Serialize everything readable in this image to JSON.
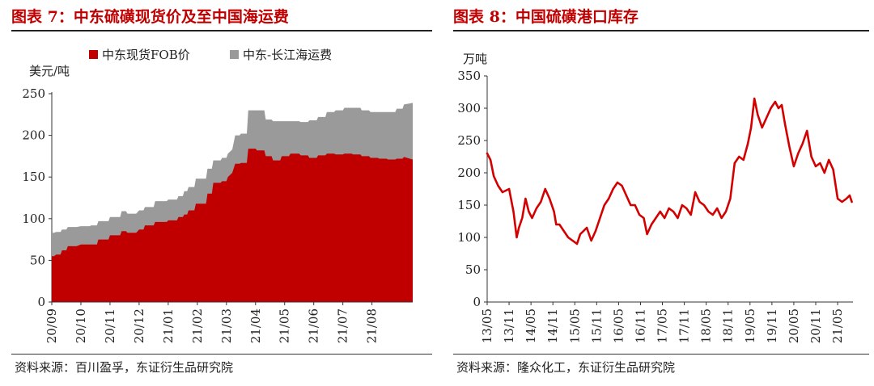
{
  "left": {
    "title": "图表 7：中东硫磺现货价及至中国海运费",
    "source": "资料来源：百川盈孚，东证衍生品研究院",
    "chart_data": {
      "type": "area",
      "stacked": true,
      "ylabel": "美元/吨",
      "ylim": [
        0,
        250
      ],
      "yticks": [
        0,
        50,
        100,
        150,
        200,
        250
      ],
      "xticks": [
        "20/09",
        "20/10",
        "20/11",
        "20/12",
        "21/01",
        "21/02",
        "21/03",
        "21/04",
        "21/05",
        "21/06",
        "21/07",
        "21/08"
      ],
      "legend_position": "top",
      "colors": {
        "fob": "#c00000",
        "freight": "#9a9a9a"
      },
      "x": [
        0.0,
        0.08,
        0.15,
        0.3,
        0.35,
        0.5,
        0.55,
        0.85,
        1.0,
        1.3,
        1.35,
        1.55,
        1.6,
        1.95,
        2.0,
        2.35,
        2.4,
        2.55,
        2.6,
        2.9,
        3.0,
        3.15,
        3.2,
        3.5,
        3.55,
        3.95,
        4.0,
        4.3,
        4.35,
        4.5,
        4.55,
        4.65,
        4.7,
        4.9,
        4.95,
        5.3,
        5.35,
        5.5,
        5.55,
        5.8,
        5.85,
        6.0,
        6.05,
        6.2,
        6.3,
        6.45,
        6.5,
        6.7,
        6.75,
        7.0,
        7.05,
        7.3,
        7.35,
        7.55,
        7.6,
        7.85,
        7.9,
        8.15,
        8.2,
        8.5,
        8.55,
        8.8,
        8.85,
        9.1,
        9.15,
        9.4,
        9.45,
        9.7,
        9.75,
        10.0,
        10.05,
        10.3,
        10.35,
        10.6,
        10.65,
        10.9,
        10.95,
        11.2,
        11.25,
        11.5,
        11.55,
        11.8,
        11.85,
        12.05,
        12.1,
        12.4
      ],
      "series": [
        {
          "name": "中东现货FOB价",
          "values": [
            55,
            55,
            57,
            57,
            62,
            62,
            67,
            67,
            69,
            69,
            69,
            69,
            75,
            75,
            80,
            80,
            85,
            85,
            83,
            83,
            87,
            87,
            92,
            92,
            96,
            96,
            98,
            98,
            102,
            102,
            105,
            105,
            110,
            110,
            118,
            118,
            130,
            130,
            143,
            143,
            145,
            145,
            150,
            155,
            166,
            166,
            167,
            167,
            184,
            184,
            182,
            182,
            175,
            175,
            170,
            170,
            175,
            175,
            178,
            178,
            176,
            176,
            173,
            173,
            176,
            176,
            178,
            178,
            177,
            177,
            178,
            178,
            177,
            177,
            175,
            175,
            173,
            173,
            172,
            172,
            171,
            171,
            172,
            172,
            174,
            171
          ]
        },
        {
          "name": "中东-长江海运费",
          "values": [
            28,
            28,
            27,
            27,
            25,
            25,
            23,
            23,
            22,
            22,
            23,
            23,
            22,
            22,
            22,
            22,
            24,
            24,
            23,
            23,
            23,
            23,
            22,
            22,
            25,
            25,
            25,
            25,
            25,
            25,
            28,
            28,
            28,
            28,
            30,
            30,
            30,
            30,
            27,
            27,
            28,
            28,
            28,
            28,
            34,
            34,
            35,
            35,
            46,
            46,
            48,
            48,
            44,
            44,
            47,
            47,
            42,
            42,
            39,
            39,
            40,
            40,
            45,
            45,
            46,
            46,
            50,
            50,
            53,
            53,
            55,
            55,
            56,
            56,
            55,
            55,
            55,
            55,
            56,
            56,
            57,
            57,
            60,
            60,
            63,
            68
          ]
        }
      ]
    }
  },
  "right": {
    "title": "图表 8：中国硫磺港口库存",
    "source": "资料来源：隆众化工，东证衍生品研究院",
    "chart_data": {
      "type": "line",
      "ylabel": "万吨",
      "ylim": [
        0,
        350
      ],
      "yticks": [
        0,
        50,
        100,
        150,
        200,
        250,
        300,
        350
      ],
      "xticks": [
        "13/05",
        "13/11",
        "14/05",
        "14/11",
        "15/05",
        "15/11",
        "16/05",
        "16/11",
        "17/05",
        "17/11",
        "18/05",
        "18/11",
        "19/05",
        "19/11",
        "20/05",
        "20/11",
        "21/05"
      ],
      "color": "#d40000",
      "series": [
        {
          "name": "",
          "x": [
            0.0,
            0.15,
            0.3,
            0.5,
            0.7,
            1.0,
            1.2,
            1.35,
            1.45,
            1.6,
            1.75,
            1.9,
            2.05,
            2.25,
            2.45,
            2.65,
            2.85,
            3.05,
            3.15,
            3.3,
            3.5,
            3.7,
            3.9,
            4.1,
            4.25,
            4.4,
            4.55,
            4.75,
            4.95,
            5.15,
            5.35,
            5.55,
            5.75,
            5.95,
            6.15,
            6.35,
            6.55,
            6.75,
            6.95,
            7.15,
            7.3,
            7.5,
            7.7,
            7.9,
            8.1,
            8.3,
            8.5,
            8.7,
            8.9,
            9.1,
            9.3,
            9.5,
            9.7,
            9.9,
            10.1,
            10.3,
            10.5,
            10.7,
            10.9,
            11.1,
            11.3,
            11.5,
            11.7,
            11.9,
            12.05,
            12.2,
            12.35,
            12.55,
            12.75,
            12.95,
            13.15,
            13.3,
            13.45,
            13.6,
            13.8,
            14.0,
            14.2,
            14.4,
            14.6,
            14.8,
            15.0,
            15.2,
            15.4,
            15.6,
            15.8,
            16.0,
            16.2,
            16.4,
            16.55,
            16.65
          ],
          "values": [
            230,
            220,
            195,
            180,
            170,
            175,
            140,
            100,
            115,
            130,
            160,
            140,
            130,
            145,
            155,
            175,
            160,
            140,
            120,
            120,
            110,
            100,
            95,
            90,
            105,
            110,
            115,
            95,
            110,
            130,
            150,
            160,
            175,
            185,
            180,
            165,
            150,
            150,
            135,
            130,
            105,
            120,
            130,
            140,
            130,
            145,
            140,
            130,
            150,
            145,
            135,
            170,
            155,
            150,
            140,
            135,
            145,
            130,
            140,
            160,
            215,
            225,
            220,
            245,
            270,
            315,
            290,
            270,
            285,
            300,
            310,
            300,
            305,
            275,
            240,
            210,
            230,
            245,
            265,
            225,
            210,
            215,
            200,
            220,
            205,
            160,
            155,
            160,
            165,
            155
          ]
        }
      ]
    }
  }
}
